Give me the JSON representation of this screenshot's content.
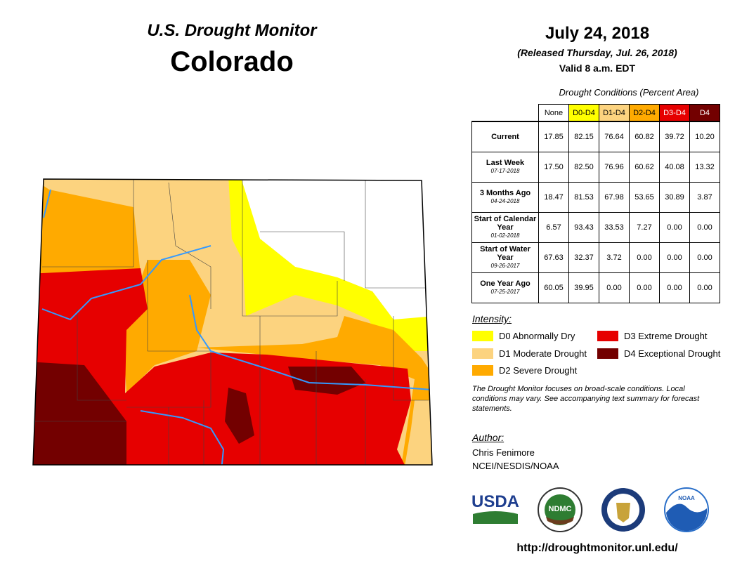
{
  "header": {
    "title": "U.S. Drought Monitor",
    "state": "Colorado"
  },
  "date": {
    "date": "July 24, 2018",
    "released": "(Released Thursday, Jul. 26, 2018)",
    "valid": "Valid 8 a.m. EDT"
  },
  "table": {
    "caption": "Drought Conditions (Percent Area)",
    "columns": [
      {
        "label": "None",
        "color": "#ffffff"
      },
      {
        "label": "D0-D4",
        "color": "#ffff00"
      },
      {
        "label": "D1-D4",
        "color": "#fcd37f"
      },
      {
        "label": "D2-D4",
        "color": "#ffaa00"
      },
      {
        "label": "D3-D4",
        "color": "#e60000"
      },
      {
        "label": "D4",
        "color": "#730000"
      }
    ],
    "rows": [
      {
        "label": "Current",
        "values": [
          "17.85",
          "82.15",
          "76.64",
          "60.82",
          "39.72",
          "10.20"
        ]
      },
      {
        "label": "Last Week",
        "date": "07-17-2018",
        "values": [
          "17.50",
          "82.50",
          "76.96",
          "60.62",
          "40.08",
          "13.32"
        ]
      },
      {
        "label": "3 Months Ago",
        "date": "04-24-2018",
        "values": [
          "18.47",
          "81.53",
          "67.98",
          "53.65",
          "30.89",
          "3.87"
        ]
      },
      {
        "label": "Start of Calendar Year",
        "date": "01-02-2018",
        "values": [
          "6.57",
          "93.43",
          "33.53",
          "7.27",
          "0.00",
          "0.00"
        ]
      },
      {
        "label": "Start of Water Year",
        "date": "09-26-2017",
        "values": [
          "67.63",
          "32.37",
          "3.72",
          "0.00",
          "0.00",
          "0.00"
        ]
      },
      {
        "label": "One Year Ago",
        "date": "07-25-2017",
        "values": [
          "60.05",
          "39.95",
          "0.00",
          "0.00",
          "0.00",
          "0.00"
        ]
      }
    ]
  },
  "legend": {
    "title": "Intensity:",
    "items": [
      {
        "label": "D0 Abnormally Dry",
        "color": "#ffff00"
      },
      {
        "label": "D1 Moderate Drought",
        "color": "#fcd37f"
      },
      {
        "label": "D2 Severe Drought",
        "color": "#ffaa00"
      },
      {
        "label": "D3 Extreme Drought",
        "color": "#e60000"
      },
      {
        "label": "D4 Exceptional Drought",
        "color": "#730000"
      }
    ]
  },
  "note": "The Drought Monitor focuses on broad-scale conditions. Local conditions may vary. See accompanying text summary for forecast statements.",
  "author": {
    "title": "Author:",
    "name": "Chris Fenimore",
    "org": "NCEI/NESDIS/NOAA"
  },
  "logos": {
    "usda": "USDA",
    "ndmc": "NDMC",
    "noaa": "NOAA"
  },
  "url": "http://droughtmonitor.unl.edu/"
}
